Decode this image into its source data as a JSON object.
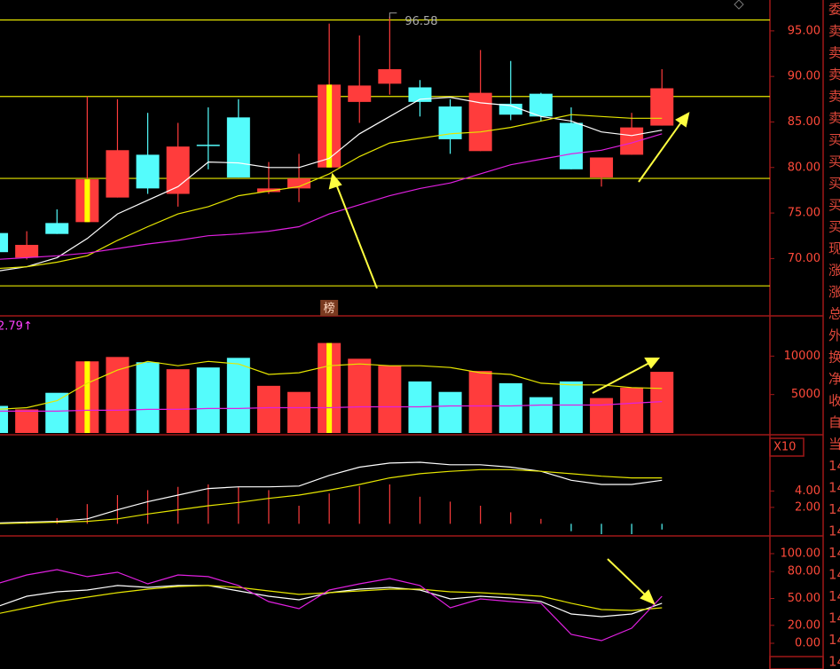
{
  "chart_data": [
    {
      "type": "candlestick",
      "open": [
        72.8,
        70.1,
        73.9,
        74.0,
        76.7,
        81.4,
        77.1,
        82.5,
        85.5,
        77.3,
        77.7,
        80.0,
        87.2,
        89.2,
        88.8,
        86.7,
        81.8,
        87.0,
        88.1,
        84.9,
        78.9,
        81.4,
        84.6
      ],
      "high": [
        72.8,
        73.0,
        75.4,
        87.8,
        87.5,
        86.0,
        84.9,
        86.6,
        87.5,
        80.6,
        81.5,
        95.8,
        94.5,
        96.58,
        89.6,
        87.5,
        92.9,
        91.7,
        88.2,
        86.6,
        81.1,
        86.0,
        90.8
      ],
      "low": [
        70.7,
        69.9,
        72.7,
        74.0,
        76.7,
        77.1,
        75.7,
        79.8,
        78.9,
        77.1,
        76.2,
        80.0,
        84.9,
        88.0,
        85.6,
        81.5,
        81.8,
        85.2,
        85.1,
        79.8,
        77.9,
        81.4,
        84.6
      ],
      "close": [
        70.7,
        71.5,
        72.7,
        78.7,
        81.9,
        77.7,
        82.3,
        82.4,
        78.9,
        77.7,
        78.8,
        89.1,
        89.0,
        90.8,
        87.2,
        83.1,
        88.2,
        85.8,
        85.6,
        79.8,
        81.1,
        84.4,
        88.7
      ],
      "limit_up": [
        false,
        false,
        false,
        true,
        false,
        false,
        false,
        false,
        false,
        false,
        false,
        true,
        false,
        false,
        false,
        false,
        false,
        false,
        false,
        false,
        false,
        false,
        false
      ],
      "up_color": "#ff3c3c",
      "down_color": "#54fcfc",
      "limit_color": "#ffff00",
      "series": [
        {
          "color": "#ffffff",
          "values": [
            68.6,
            69.1,
            70.1,
            72.2,
            74.9,
            76.4,
            77.9,
            80.6,
            80.5,
            80.0,
            80.0,
            81.0,
            83.7,
            85.6,
            87.5,
            87.7,
            87.1,
            86.8,
            85.6,
            85.1,
            83.9,
            83.5,
            84.1
          ]
        },
        {
          "color": "#e6e600",
          "values": [
            68.9,
            69.1,
            69.6,
            70.3,
            72.0,
            73.5,
            74.9,
            75.7,
            76.9,
            77.4,
            77.9,
            79.3,
            81.2,
            82.7,
            83.2,
            83.7,
            83.9,
            84.4,
            85.1,
            85.8,
            85.6,
            85.4,
            85.4
          ]
        },
        {
          "color": "#e020e0",
          "values": [
            69.9,
            70.1,
            70.3,
            70.6,
            71.1,
            71.6,
            72.0,
            72.5,
            72.7,
            73.0,
            73.5,
            74.9,
            75.9,
            76.9,
            77.7,
            78.3,
            79.3,
            80.3,
            80.9,
            81.5,
            81.9,
            82.7,
            83.7
          ]
        }
      ],
      "levels": [
        96.2,
        87.8,
        78.8,
        67.0
      ],
      "level_color": "#e6e600",
      "high_label": "96.58",
      "marker_label": "榜",
      "ylim": [
        63.8,
        98.2
      ],
      "yticks": [
        {
          "value": 95,
          "label": "95.00"
        },
        {
          "value": 90,
          "label": "90.00"
        },
        {
          "value": 85,
          "label": "85.00"
        },
        {
          "value": 80,
          "label": "80.00"
        },
        {
          "value": 75,
          "label": "75.00"
        },
        {
          "value": 70,
          "label": "70.00"
        }
      ]
    },
    {
      "type": "bar",
      "label": "2.79↑",
      "scale_label": "X10",
      "values": [
        3523,
        3068,
        5227,
        9318,
        9886,
        9205,
        8295,
        8523,
        9773,
        6136,
        5341,
        11705,
        9659,
        8750,
        6705,
        5341,
        8068,
        6477,
        4659,
        6705,
        4545,
        5909,
        7955
      ],
      "series": [
        {
          "color": "#e6e600",
          "values": [
            3068,
            3295,
            4205,
            6477,
            8182,
            9318,
            8750,
            9318,
            8977,
            7614,
            7841,
            8750,
            8977,
            8750,
            8750,
            8523,
            7841,
            7614,
            6477,
            6250,
            6250,
            5909,
            5795
          ]
        },
        {
          "color": "#e020e0",
          "values": [
            2841,
            2841,
            2841,
            2955,
            2955,
            3068,
            3068,
            3182,
            3182,
            3295,
            3295,
            3295,
            3409,
            3409,
            3409,
            3523,
            3523,
            3523,
            3636,
            3636,
            3636,
            3864,
            4091
          ]
        }
      ],
      "ylim": [
        0,
        14773
      ],
      "yticks": [
        10000,
        5000
      ]
    },
    {
      "type": "macd",
      "histogram": [
        0.1,
        0.3,
        0.7,
        2.4,
        3.5,
        4.1,
        4.5,
        4.8,
        4.5,
        4.1,
        2.2,
        3.7,
        4.6,
        4.8,
        3.3,
        2.7,
        2.2,
        1.4,
        0.6,
        -0.9,
        -2.0,
        -1.8,
        -0.7
      ],
      "up_color": "#ff3c3c",
      "down_color": "#54fcfc",
      "series": [
        {
          "color": "#ffffff",
          "values": [
            0.1,
            0.2,
            0.3,
            0.6,
            1.7,
            2.7,
            3.5,
            4.3,
            4.5,
            4.5,
            4.6,
            5.9,
            6.9,
            7.4,
            7.5,
            7.2,
            7.2,
            6.9,
            6.4,
            5.3,
            4.8,
            4.8,
            5.3
          ]
        },
        {
          "color": "#e6e600",
          "values": [
            0.0,
            0.1,
            0.2,
            0.3,
            0.6,
            1.2,
            1.7,
            2.2,
            2.6,
            3.1,
            3.5,
            4.1,
            4.8,
            5.6,
            6.1,
            6.4,
            6.6,
            6.6,
            6.4,
            6.1,
            5.8,
            5.6,
            5.6
          ]
        }
      ],
      "ylim": [
        -1.26,
        10.42
      ],
      "yticks": [
        {
          "value": 4,
          "label": "4.00"
        },
        {
          "value": 2,
          "label": "2.00"
        }
      ]
    },
    {
      "type": "line",
      "series": [
        {
          "color": "#ffffff",
          "values": [
            40.6,
            52.5,
            57.4,
            59.4,
            64.4,
            62.4,
            64.4,
            64.4,
            58.4,
            52.5,
            48.5,
            56.4,
            60.4,
            62.4,
            59.4,
            49.5,
            52.5,
            50.5,
            46.5,
            32.7,
            29.7,
            32.7,
            44.6
          ]
        },
        {
          "color": "#e6e600",
          "values": [
            32.7,
            39.6,
            46.5,
            51.5,
            56.4,
            60.4,
            63.4,
            64.4,
            62.4,
            58.4,
            54.5,
            56.4,
            58.4,
            60.4,
            60.4,
            57.4,
            56.4,
            54.5,
            52.5,
            44.6,
            37.6,
            36.6,
            39.6
          ]
        },
        {
          "color": "#e020e0",
          "values": [
            66.3,
            76.2,
            82.2,
            74.3,
            79.2,
            66.3,
            76.2,
            74.3,
            64.4,
            46.5,
            38.6,
            59.4,
            66.3,
            72.3,
            64.4,
            39.6,
            49.5,
            46.5,
            44.6,
            9.9,
            3.0,
            16.8,
            52.5
          ]
        }
      ],
      "ylim": [
        -28.7,
        117.8
      ],
      "yticks": [
        {
          "value": 100,
          "label": "100.00"
        },
        {
          "value": 80,
          "label": "80.00"
        },
        {
          "value": 50,
          "label": "50.00"
        },
        {
          "value": 20,
          "label": "20.00"
        },
        {
          "value": 0,
          "label": "0.00"
        }
      ]
    }
  ],
  "side_panel": {
    "labels": [
      "委",
      "卖",
      "卖",
      "卖",
      "卖",
      "卖",
      "买",
      "买",
      "买",
      "买",
      "买",
      "现",
      "涨",
      "涨",
      "总",
      "外",
      "换",
      "净",
      "收",
      "自",
      "当",
      "14",
      "14",
      "14",
      "14",
      "14",
      "14",
      "14",
      "14",
      "14",
      "14"
    ]
  }
}
